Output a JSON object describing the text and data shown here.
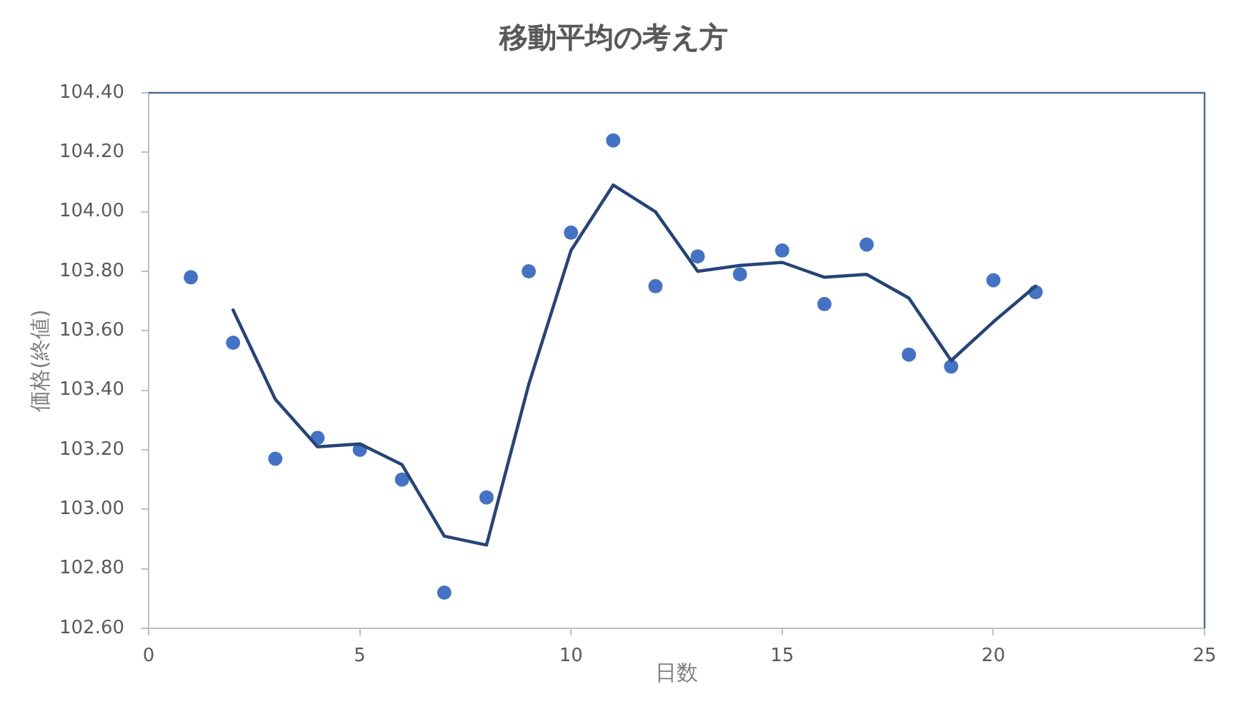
{
  "chart_data": {
    "type": "scatter",
    "title": "移動平均の考え方",
    "xlabel": "日数",
    "ylabel": "価格(終値)",
    "xlim": [
      0,
      25
    ],
    "xticks": [
      0,
      5,
      10,
      15,
      20,
      25
    ],
    "ylim": [
      102.6,
      104.4
    ],
    "yticks": [
      {
        "value": 102.6,
        "label": "102.60"
      },
      {
        "value": 102.8,
        "label": "102.80"
      },
      {
        "value": 103.0,
        "label": "103.00"
      },
      {
        "value": 103.2,
        "label": "103.20"
      },
      {
        "value": 103.4,
        "label": "103.40"
      },
      {
        "value": 103.6,
        "label": "103.60"
      },
      {
        "value": 103.8,
        "label": "103.80"
      },
      {
        "value": 104.0,
        "label": "104.00"
      },
      {
        "value": 104.2,
        "label": "104.20"
      },
      {
        "value": 104.4,
        "label": "104.40"
      }
    ],
    "grid": false,
    "legend": false,
    "series": [
      {
        "type": "scatter",
        "color": "#4472c4",
        "marker": "circle",
        "x": [
          1,
          2,
          3,
          4,
          5,
          6,
          7,
          8,
          9,
          10,
          11,
          12,
          13,
          14,
          15,
          16,
          17,
          18,
          19,
          20,
          21
        ],
        "values": [
          103.78,
          103.56,
          103.17,
          103.24,
          103.2,
          103.1,
          102.72,
          103.04,
          103.8,
          103.93,
          104.24,
          103.75,
          103.85,
          103.79,
          103.87,
          103.69,
          103.89,
          103.52,
          103.48,
          103.77,
          103.73
        ]
      },
      {
        "type": "line",
        "color": "#264478",
        "marker": "none",
        "line_style": "solid",
        "x": [
          2,
          3,
          4,
          5,
          6,
          7,
          8,
          9,
          10,
          11,
          12,
          13,
          14,
          15,
          16,
          17,
          18,
          19,
          20,
          21
        ],
        "values": [
          103.67,
          103.37,
          103.21,
          103.22,
          103.15,
          102.91,
          102.88,
          103.42,
          103.87,
          104.09,
          104.0,
          103.8,
          103.82,
          103.83,
          103.78,
          103.79,
          103.71,
          103.5,
          103.63,
          103.75
        ]
      }
    ]
  }
}
